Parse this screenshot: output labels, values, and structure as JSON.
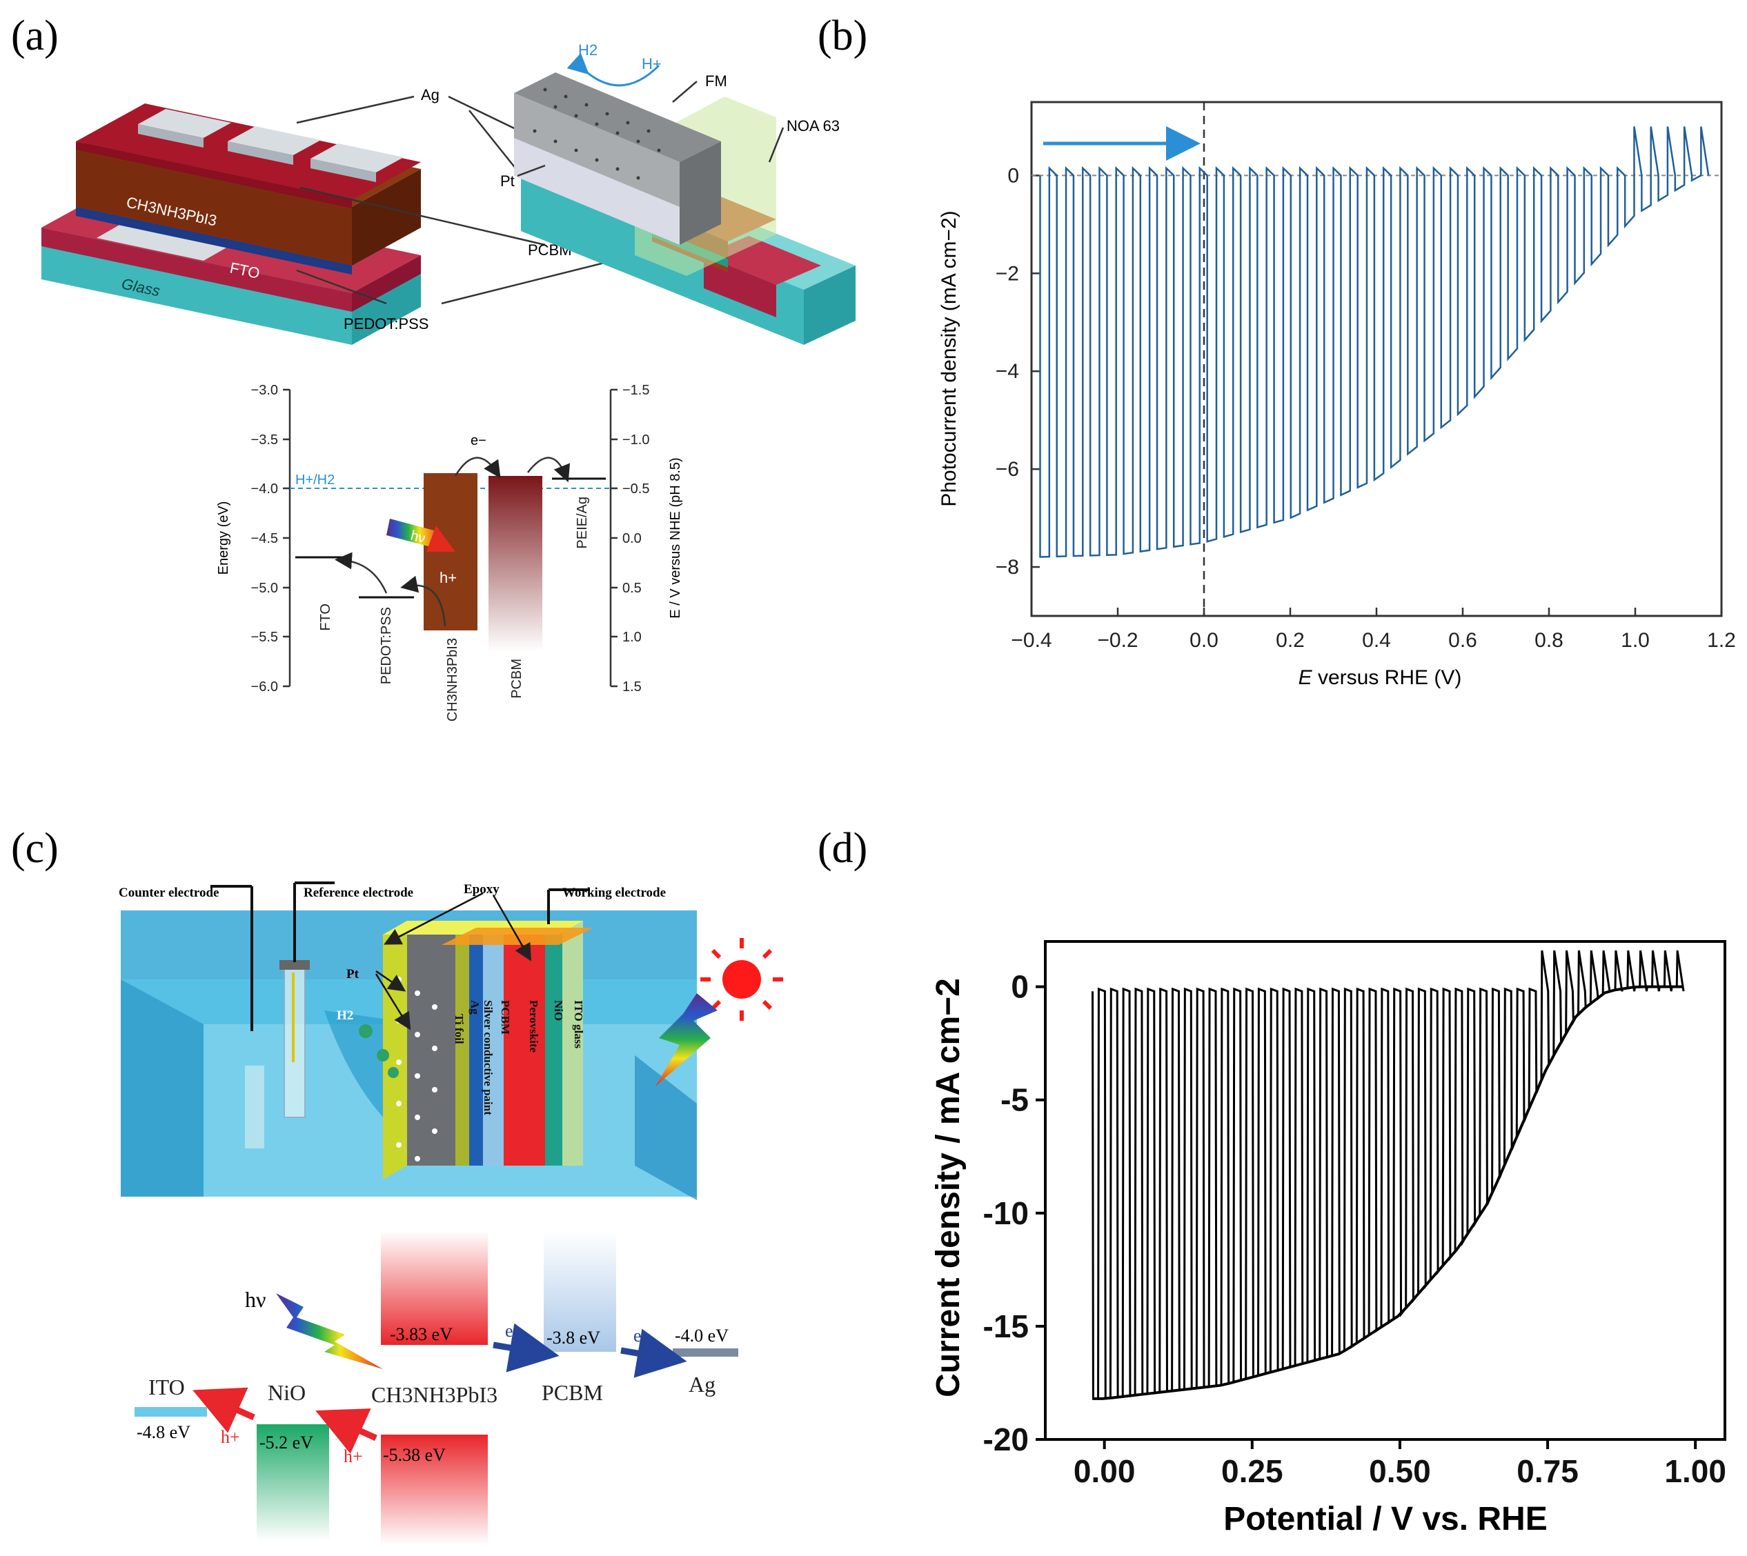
{
  "panel_labels": {
    "a": "(a)",
    "b": "(b)",
    "c": "(c)",
    "d": "(d)"
  },
  "panel_a": {
    "device_left": {
      "ag": "Ag",
      "absorber": "CH3NH3PbI3",
      "fto": "FTO",
      "glass": "Glass",
      "pcbm": "PCBM",
      "pedot": "PEDOT:PSS"
    },
    "device_right": {
      "h2": "H2",
      "hplus": "H+",
      "fm": "FM",
      "noa": "NOA 63",
      "pt": "Pt"
    },
    "energy_diagram": {
      "left_axis_label": "Energy (eV)",
      "left_ticks": [
        "−3.0",
        "−3.5",
        "−4.0",
        "−4.5",
        "−5.0",
        "−5.5",
        "−6.0"
      ],
      "right_axis_label": "E / V versus NHE (pH 8.5)",
      "right_ticks": [
        "−1.5",
        "−1.0",
        "−0.5",
        "0.0",
        "0.5",
        "1.0",
        "1.5"
      ],
      "redox_label": "H+/H2",
      "electron": "e−",
      "hole": "h+",
      "photon": "hν",
      "layers": [
        "FTO",
        "PEDOT:PSS",
        "CH3NH3PbI3",
        "PCBM",
        "PEIE/Ag"
      ]
    }
  },
  "panel_c": {
    "counter_electrode": "Counter electrode",
    "reference_electrode": "Reference electrode",
    "epoxy": "Epoxy",
    "working_electrode": "Working electrode",
    "pt": "Pt",
    "h2": "H2",
    "stack_layers": [
      "Ti foil",
      "Ag",
      "Silver conductive paint",
      "PCBM",
      "Perovskite",
      "NiO",
      "ITO glass"
    ],
    "energy_levels": {
      "photon": "hν",
      "e1": "e−",
      "e2": "e−",
      "h1": "h+",
      "h2": "h+",
      "perovskite_cb": "-3.83 eV",
      "pcbm_level": "-3.8 eV",
      "ag_level": "-4.0 eV",
      "ito_level": "-4.8 eV",
      "nio_level": "-5.2 eV",
      "perovskite_vb": "-5.38 eV",
      "names": [
        "ITO",
        "NiO",
        "CH3NH3PbI3",
        "PCBM",
        "Ag"
      ]
    }
  },
  "chart_data": [
    {
      "id": "b",
      "type": "line",
      "title": "",
      "xlabel_italic": "E",
      "xlabel_rest": " versus RHE (V)",
      "ylabel": "Photocurrent density (mA cm−2)",
      "xlim": [
        -0.4,
        1.2
      ],
      "ylim": [
        -9.0,
        1.5
      ],
      "xticks": [
        "−0.4",
        "−0.2",
        "0.0",
        "0.2",
        "0.4",
        "0.6",
        "0.8",
        "1.0",
        "1.2"
      ],
      "xtick_values": [
        -0.4,
        -0.2,
        0.0,
        0.2,
        0.4,
        0.6,
        0.8,
        1.0,
        1.2
      ],
      "yticks": [
        "0",
        "−2",
        "−4",
        "−6",
        "−8"
      ],
      "ytick_values": [
        0,
        -2,
        -4,
        -6,
        -8
      ],
      "dark_current": 0,
      "light_on_envelope": {
        "x": [
          -0.4,
          -0.2,
          0.0,
          0.2,
          0.4,
          0.6,
          0.8,
          1.0,
          1.15
        ],
        "y": [
          -7.8,
          -7.75,
          -7.5,
          -7.0,
          -6.2,
          -4.8,
          -2.8,
          -0.8,
          0.0
        ]
      },
      "annotation": "scan direction arrow",
      "vertical_dashed_line_at": 0.0,
      "series_color": "#1f5f99"
    },
    {
      "id": "d",
      "type": "line",
      "title": "",
      "xlabel": "Potential / V vs. RHE",
      "ylabel": "Current density / mA cm−2",
      "xlim": [
        -0.1,
        1.05
      ],
      "ylim": [
        -20,
        2
      ],
      "xticks": [
        "0.00",
        "0.25",
        "0.50",
        "0.75",
        "1.00"
      ],
      "xtick_values": [
        0.0,
        0.25,
        0.5,
        0.75,
        1.0
      ],
      "yticks": [
        "0",
        "-5",
        "-10",
        "-15",
        "-20"
      ],
      "ytick_values": [
        0,
        -5,
        -10,
        -15,
        -20
      ],
      "dark_current": -0.2,
      "light_on_envelope": {
        "x": [
          0.0,
          0.2,
          0.4,
          0.5,
          0.6,
          0.65,
          0.7,
          0.75,
          0.8,
          0.85,
          0.9,
          1.0
        ],
        "y": [
          -18.2,
          -17.6,
          -16.2,
          -14.5,
          -11.5,
          -9.5,
          -6.5,
          -3.5,
          -1.2,
          -0.2,
          0.0,
          0.0
        ]
      },
      "series_color": "#000000"
    }
  ]
}
